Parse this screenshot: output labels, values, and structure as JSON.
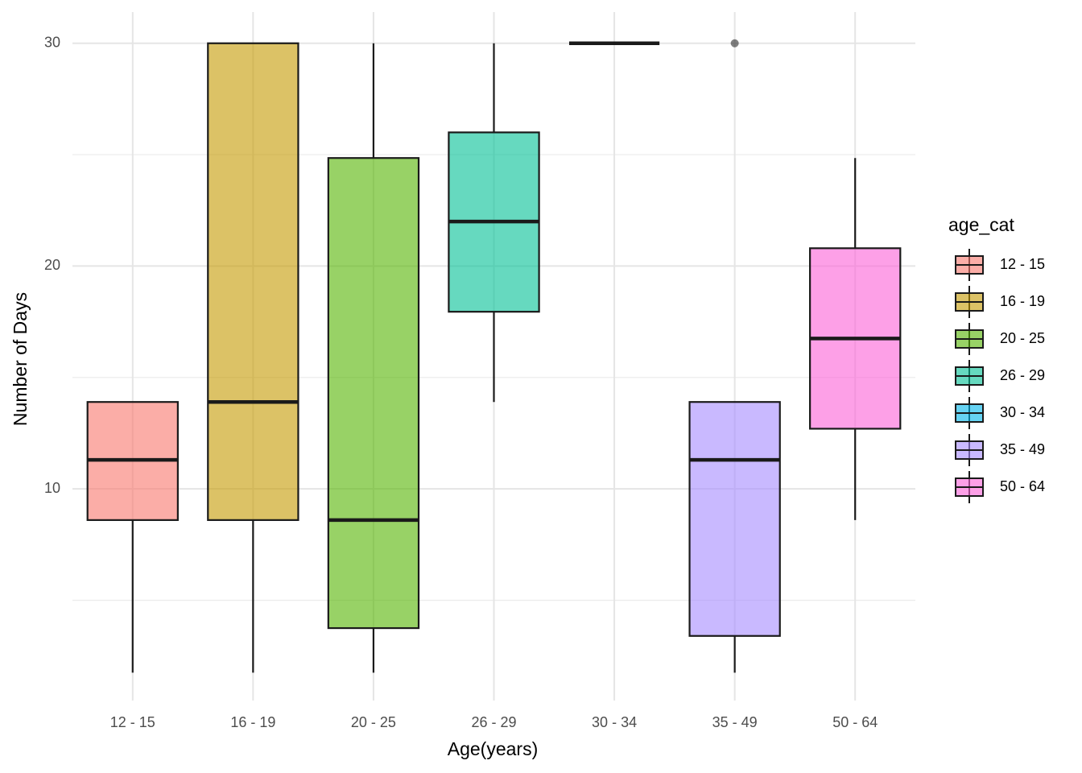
{
  "chart_data": {
    "type": "box",
    "x_label": "Age(years)",
    "y_label": "Number of Days",
    "legend_title": "age_cat",
    "legend": "right",
    "grid": true,
    "categories": [
      "12 - 15",
      "16 - 19",
      "20 - 25",
      "26 - 29",
      "30 - 34",
      "35 - 49",
      "50 - 64"
    ],
    "colors": [
      "#F8766D",
      "#C49A00",
      "#53B400",
      "#00C094",
      "#00B6EB",
      "#A58AFF",
      "#FB61D7"
    ],
    "boxes": [
      {
        "min": 1.75,
        "q1": 8.6,
        "median": 11.3,
        "q3": 13.9,
        "max": 13.9
      },
      {
        "min": 1.75,
        "q1": 8.6,
        "median": 13.9,
        "q3": 30,
        "max": 30
      },
      {
        "min": 1.75,
        "q1": 3.75,
        "median": 8.6,
        "q3": 24.85,
        "max": 30
      },
      {
        "min": 13.9,
        "q1": 17.95,
        "median": 22,
        "q3": 26,
        "max": 30
      },
      {
        "min": 30,
        "q1": 30,
        "median": 30,
        "q3": 30,
        "max": 30
      },
      {
        "min": 1.75,
        "q1": 3.4,
        "median": 11.3,
        "q3": 13.9,
        "max": 13.9,
        "outliers": [
          30
        ]
      },
      {
        "min": 8.6,
        "q1": 12.7,
        "median": 16.75,
        "q3": 20.8,
        "max": 24.85
      }
    ],
    "ylim": [
      0.5,
      31.4
    ],
    "yticks": [
      10,
      20,
      30
    ],
    "yminor": [
      5,
      15,
      25
    ]
  }
}
